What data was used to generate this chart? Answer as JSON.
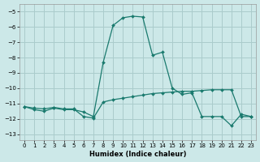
{
  "xlabel": "Humidex (Indice chaleur)",
  "background_color": "#cce8e8",
  "grid_color": "#aacccc",
  "line_color": "#1a7a6e",
  "xlim": [
    -0.5,
    23.5
  ],
  "ylim_top": -4.5,
  "ylim_bottom": -13.4,
  "yticks": [
    -5,
    -6,
    -7,
    -8,
    -9,
    -10,
    -11,
    -12,
    -13
  ],
  "xticks": [
    0,
    1,
    2,
    3,
    4,
    5,
    6,
    7,
    8,
    9,
    10,
    11,
    12,
    13,
    14,
    15,
    16,
    17,
    18,
    19,
    20,
    21,
    22,
    23
  ],
  "series1_x": [
    0,
    1,
    2,
    3,
    4,
    5,
    6,
    7,
    8,
    9,
    10,
    11,
    12,
    13,
    14,
    15,
    16,
    17,
    18,
    19,
    20,
    21,
    22,
    23
  ],
  "series1_y": [
    -11.2,
    -11.4,
    -11.5,
    -11.3,
    -11.4,
    -11.4,
    -11.55,
    -11.85,
    -8.3,
    -5.9,
    -5.4,
    -5.3,
    -5.35,
    -7.85,
    -7.65,
    -10.0,
    -10.4,
    -10.3,
    -11.85,
    -11.85,
    -11.85,
    -12.45,
    -11.7,
    -11.85
  ],
  "series2_x": [
    0,
    1,
    2,
    3,
    4,
    5,
    6,
    7,
    8,
    9,
    10,
    11,
    12,
    13,
    14,
    15,
    16,
    17,
    18,
    19,
    20,
    21,
    22,
    23
  ],
  "series2_y": [
    -11.2,
    -11.3,
    -11.35,
    -11.25,
    -11.35,
    -11.35,
    -11.85,
    -11.95,
    -10.9,
    -10.75,
    -10.65,
    -10.55,
    -10.45,
    -10.35,
    -10.3,
    -10.25,
    -10.2,
    -10.2,
    -10.15,
    -10.1,
    -10.1,
    -10.1,
    -11.85,
    -11.85
  ]
}
